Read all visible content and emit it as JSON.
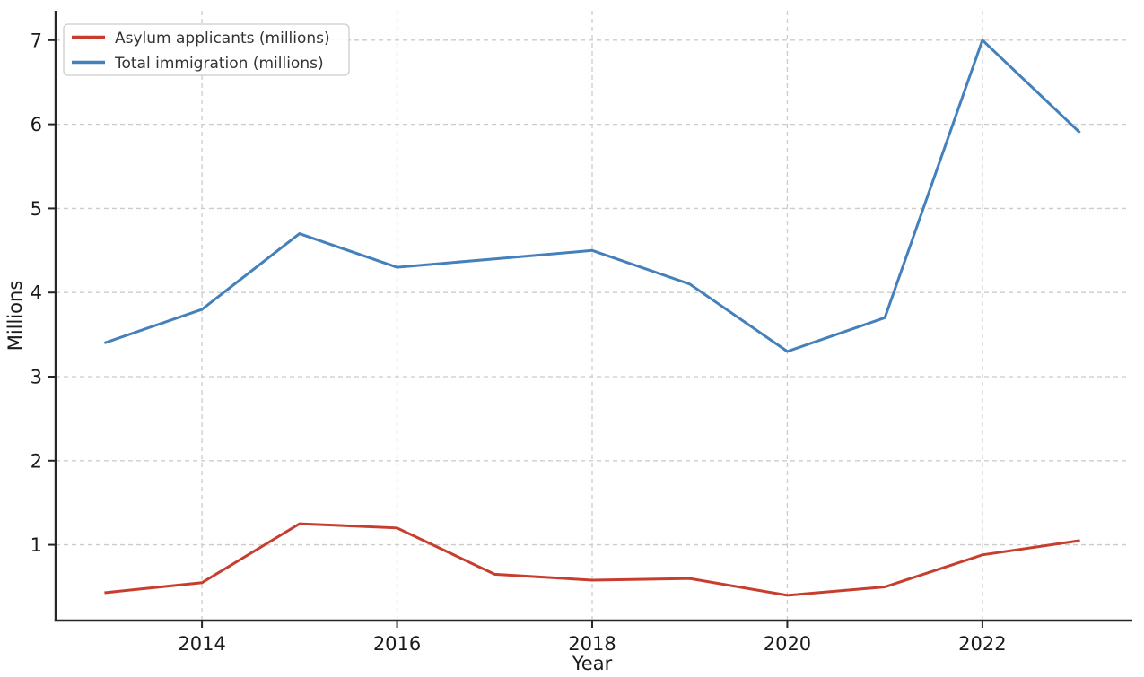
{
  "chart_data": {
    "type": "line",
    "title": "",
    "xlabel": "Year",
    "ylabel": "Millions",
    "x": [
      2013,
      2014,
      2015,
      2016,
      2017,
      2018,
      2019,
      2020,
      2021,
      2022,
      2023
    ],
    "series": [
      {
        "name": "Asylum applicants (millions)",
        "color": "#c73e2f",
        "values": [
          0.43,
          0.55,
          1.25,
          1.2,
          0.65,
          0.58,
          0.6,
          0.4,
          0.5,
          0.88,
          1.05
        ]
      },
      {
        "name": "Total immigration (millions)",
        "color": "#4480bb",
        "values": [
          3.4,
          3.8,
          4.7,
          4.3,
          4.4,
          4.5,
          4.1,
          3.3,
          3.7,
          7.0,
          5.9
        ]
      }
    ],
    "xlim": [
      2012.5,
      2023.5
    ],
    "ylim": [
      0.1,
      7.35
    ],
    "x_ticks": [
      2014,
      2016,
      2018,
      2020,
      2022
    ],
    "y_ticks": [
      1,
      2,
      3,
      4,
      5,
      6,
      7
    ],
    "grid": true,
    "grid_style": "dashed",
    "legend_position": "upper-left"
  },
  "styles": {
    "background": "#ffffff",
    "grid_color": "#cccccc",
    "spine_color": "#262626",
    "tick_color": "#262626",
    "tick_label_color": "#1a1a1a",
    "axis_label_color": "#1a1a1a",
    "legend_text_color": "#333333",
    "legend_border_color": "#cccccc",
    "legend_background": "#ffffff"
  }
}
